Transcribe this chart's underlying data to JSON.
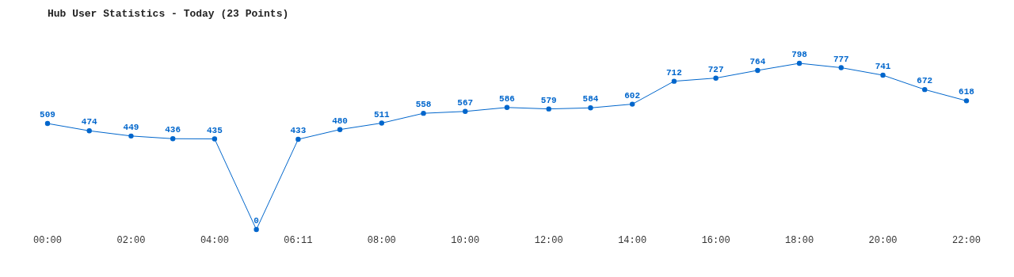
{
  "chart_data": {
    "type": "line",
    "title": "Hub User Statistics - Today (23 Points)",
    "categories": [
      "00:00",
      null,
      "02:00",
      null,
      "04:00",
      null,
      "06:11",
      null,
      "08:00",
      null,
      "10:00",
      null,
      "12:00",
      null,
      "14:00",
      null,
      "16:00",
      null,
      "18:00",
      null,
      "20:00",
      null,
      "22:00"
    ],
    "series": [
      {
        "color": "#0066cc",
        "values": [
          509,
          474,
          449,
          436,
          435,
          0,
          433,
          480,
          511,
          558,
          567,
          586,
          579,
          584,
          602,
          712,
          727,
          764,
          798,
          777,
          741,
          672,
          618
        ]
      }
    ],
    "data_labels": true,
    "marker": "circle",
    "line_style": "solid",
    "grid": false,
    "legend": false
  }
}
